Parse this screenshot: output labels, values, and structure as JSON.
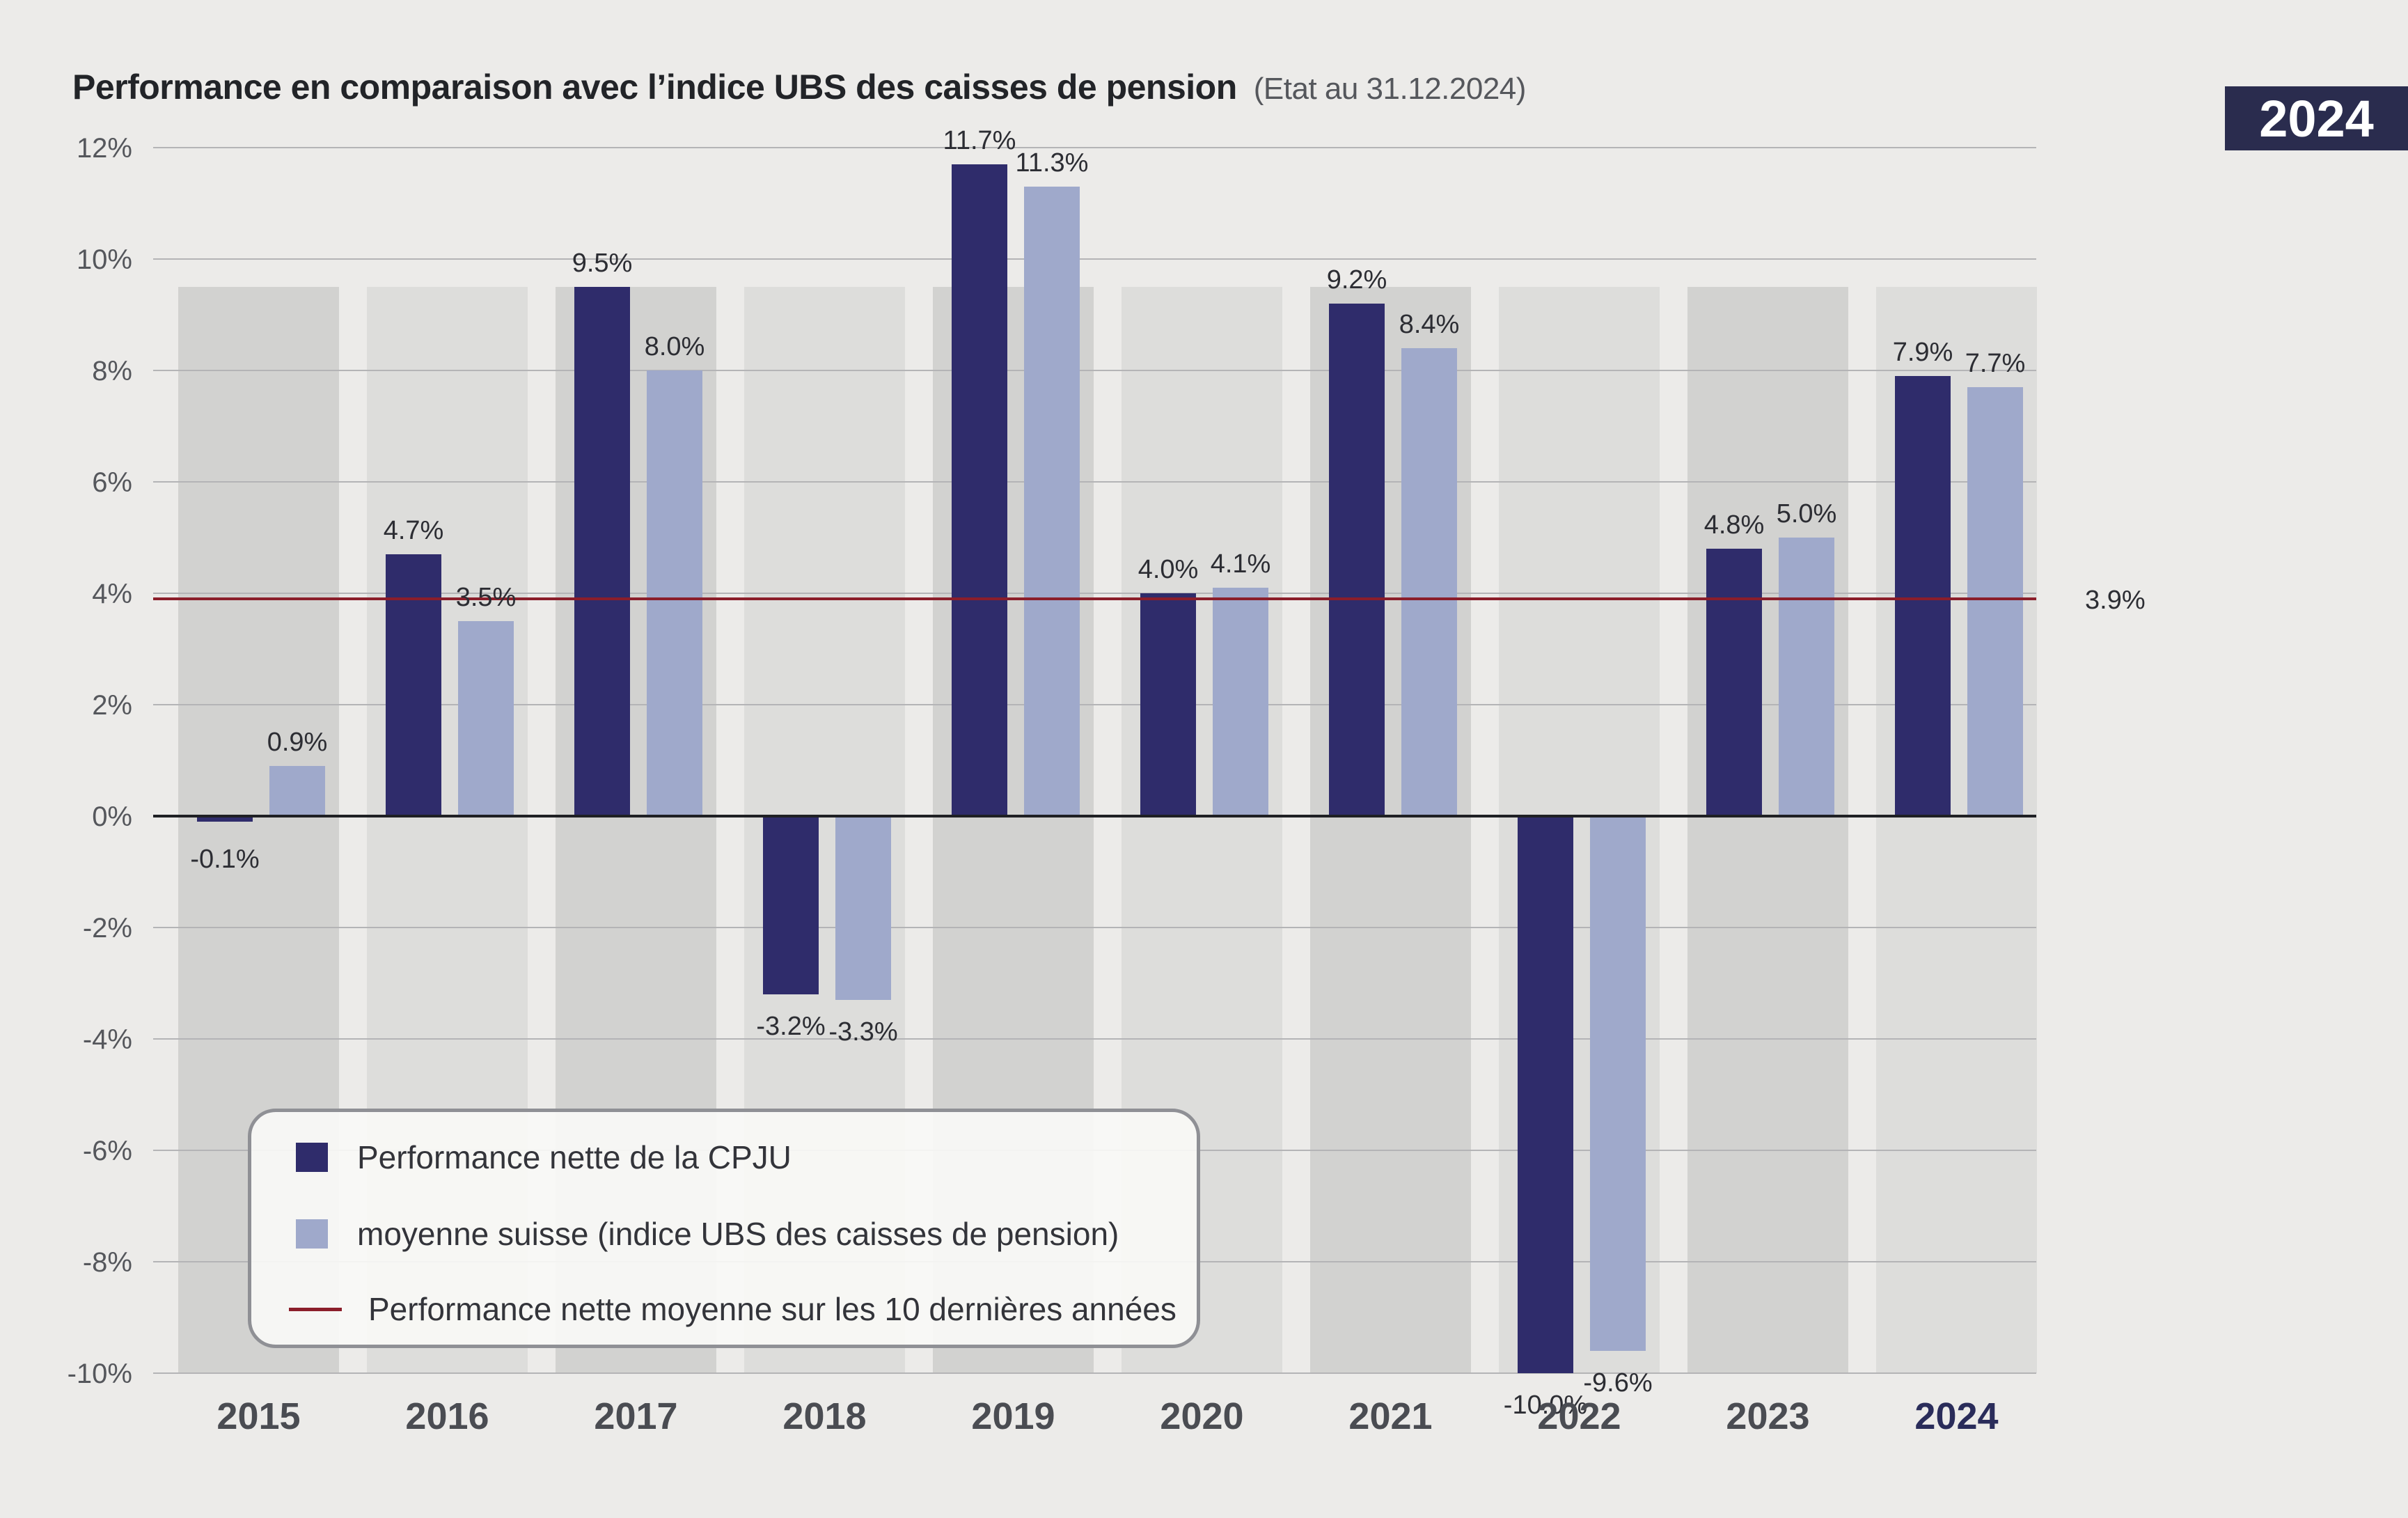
{
  "header": {
    "title": "Performance en comparaison avec l’indice UBS des caisses de pension",
    "subtitle": "(Etat au 31.12.2024)",
    "year_badge": "2024"
  },
  "colors": {
    "cpju": "#2f2c6b",
    "ubs": "#9fa9cb",
    "average_line": "#8b1e2a",
    "badge": "#2a2c4e"
  },
  "legend": {
    "items": [
      {
        "label": "Performance nette de la CPJU",
        "icon": "dark-square"
      },
      {
        "label": "moyenne suisse (indice UBS des caisses de pension)",
        "icon": "light-square"
      },
      {
        "label": "Performance nette moyenne sur les 10 dernières années",
        "icon": "red-line"
      }
    ]
  },
  "chart_data": {
    "type": "bar",
    "categories": [
      "2015",
      "2016",
      "2017",
      "2018",
      "2019",
      "2020",
      "2021",
      "2022",
      "2023",
      "2024"
    ],
    "series": [
      {
        "name": "Performance nette de la CPJU",
        "values": [
          -0.1,
          4.7,
          9.5,
          -3.2,
          11.7,
          4.0,
          9.2,
          -10.0,
          4.8,
          7.9
        ],
        "labels": [
          "-0.1%",
          "4.7%",
          "9.5%",
          "-3.2%",
          "11.7%",
          "4.0%",
          "9.2%",
          "-10.0%",
          "4.8%",
          "7.9%"
        ]
      },
      {
        "name": "moyenne suisse (indice UBS des caisses de pension)",
        "values": [
          0.9,
          3.5,
          8.0,
          -3.3,
          11.3,
          4.1,
          8.4,
          -9.6,
          5.0,
          7.7
        ],
        "labels": [
          "0.9%",
          "3.5%",
          "8.0%",
          "-3.3%",
          "11.3%",
          "4.1%",
          "8.4%",
          "-9.6%",
          "5.0%",
          "7.7%"
        ]
      }
    ],
    "reference_line": {
      "name": "Performance nette moyenne sur les 10 dernières années",
      "value": 3.9,
      "label": "3.9%"
    },
    "yticks": [
      12,
      10,
      8,
      6,
      4,
      2,
      0,
      -2,
      -4,
      -6,
      -8,
      -10
    ],
    "ytick_labels": [
      "12%",
      "10%",
      "8%",
      "6%",
      "4%",
      "2%",
      "0%",
      "-2%",
      "-4%",
      "-6%",
      "-8%",
      "-10%"
    ],
    "ylim": [
      -10,
      12
    ],
    "grid": true,
    "legend_position": "bottom-left",
    "xlabel": "",
    "ylabel": ""
  }
}
